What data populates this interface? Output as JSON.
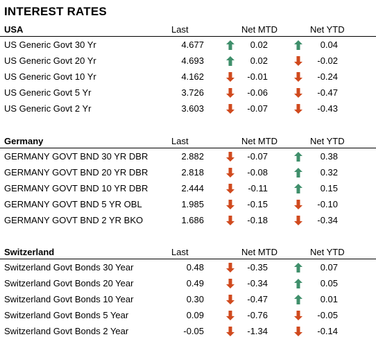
{
  "title": "INTEREST RATES",
  "columns": {
    "last": "Last",
    "mtd": "Net MTD",
    "ytd": "Net YTD"
  },
  "colors": {
    "up": "#3f8f6b",
    "down": "#d04a1e"
  },
  "sections": [
    {
      "name": "USA",
      "rows": [
        {
          "label": "US Generic Govt 30 Yr",
          "last": "4.677",
          "mtd": "0.02",
          "mtd_dir": "up",
          "ytd": "0.04",
          "ytd_dir": "up"
        },
        {
          "label": "US Generic Govt 20 Yr",
          "last": "4.693",
          "mtd": "0.02",
          "mtd_dir": "up",
          "ytd": "-0.02",
          "ytd_dir": "down"
        },
        {
          "label": "US Generic Govt 10 Yr",
          "last": "4.162",
          "mtd": "-0.01",
          "mtd_dir": "down",
          "ytd": "-0.24",
          "ytd_dir": "down"
        },
        {
          "label": "US Generic Govt 5 Yr",
          "last": "3.726",
          "mtd": "-0.06",
          "mtd_dir": "down",
          "ytd": "-0.47",
          "ytd_dir": "down"
        },
        {
          "label": "US Generic Govt 2 Yr",
          "last": "3.603",
          "mtd": "-0.07",
          "mtd_dir": "down",
          "ytd": "-0.43",
          "ytd_dir": "down"
        }
      ]
    },
    {
      "name": "Germany",
      "rows": [
        {
          "label": "GERMANY GOVT BND 30 YR DBR",
          "last": "2.882",
          "mtd": "-0.07",
          "mtd_dir": "down",
          "ytd": "0.38",
          "ytd_dir": "up"
        },
        {
          "label": "GERMANY GOVT BND 20 YR DBR",
          "last": "2.818",
          "mtd": "-0.08",
          "mtd_dir": "down",
          "ytd": "0.32",
          "ytd_dir": "up"
        },
        {
          "label": "GERMANY GOVT BND 10 YR DBR",
          "last": "2.444",
          "mtd": "-0.11",
          "mtd_dir": "down",
          "ytd": "0.15",
          "ytd_dir": "up"
        },
        {
          "label": "GERMANY GOVT BND 5 YR OBL",
          "last": "1.985",
          "mtd": "-0.15",
          "mtd_dir": "down",
          "ytd": "-0.10",
          "ytd_dir": "down"
        },
        {
          "label": "GERMANY GOVT BND 2 YR BKO",
          "last": "1.686",
          "mtd": "-0.18",
          "mtd_dir": "down",
          "ytd": "-0.34",
          "ytd_dir": "down"
        }
      ]
    },
    {
      "name": "Switzerland",
      "rows": [
        {
          "label": "Switzerland Govt Bonds 30 Year",
          "last": "0.48",
          "mtd": "-0.35",
          "mtd_dir": "down",
          "ytd": "0.07",
          "ytd_dir": "up"
        },
        {
          "label": "Switzerland Govt Bonds 20 Year",
          "last": "0.49",
          "mtd": "-0.34",
          "mtd_dir": "down",
          "ytd": "0.05",
          "ytd_dir": "up"
        },
        {
          "label": "Switzerland Govt Bonds 10 Year",
          "last": "0.30",
          "mtd": "-0.47",
          "mtd_dir": "down",
          "ytd": "0.01",
          "ytd_dir": "up"
        },
        {
          "label": "Switzerland Govt Bonds 5 Year",
          "last": "0.09",
          "mtd": "-0.76",
          "mtd_dir": "down",
          "ytd": "-0.05",
          "ytd_dir": "down"
        },
        {
          "label": "Switzerland Govt Bonds 2 Year",
          "last": "-0.05",
          "mtd": "-1.34",
          "mtd_dir": "down",
          "ytd": "-0.14",
          "ytd_dir": "down"
        }
      ]
    }
  ]
}
